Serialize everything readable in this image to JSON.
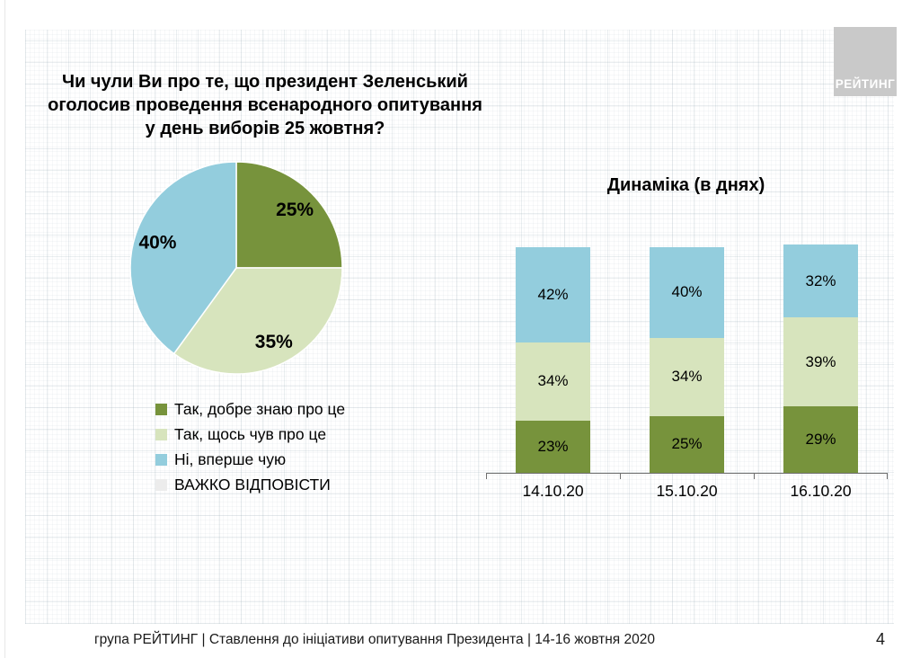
{
  "slide": {
    "page_number": "4",
    "footer": "група РЕЙТИНГ | Ставлення до ініціативи опитування Президента | 14-16 жовтня 2020",
    "logo_text": "РЕЙТИНГ",
    "logo_color": "#c9c9c9"
  },
  "colors": {
    "green": "#77933C",
    "light_green": "#D7E4BD",
    "blue": "#93CDDD",
    "gray": "#ECECEC",
    "axis": "#6e6e6e"
  },
  "chart_data": [
    {
      "type": "pie",
      "title": "Чи чули Ви про те, що президент Зеленський оголосив проведення  всенародного опитування у день виборів 25 жовтня?",
      "data_labels": "percent",
      "legend_position": "bottom-left",
      "slices": [
        {
          "label": "Так, добре знаю про це",
          "value": 25,
          "color": "#77933C"
        },
        {
          "label": "Так, щось чув про це",
          "value": 35,
          "color": "#D7E4BD"
        },
        {
          "label": "Ні, вперше чую",
          "value": 40,
          "color": "#93CDDD"
        },
        {
          "label": "ВАЖКО ВІДПОВІСТИ",
          "value": 0,
          "color": "#ECECEC"
        }
      ]
    },
    {
      "type": "bar",
      "variant": "stacked-column",
      "title": "Динаміка (в днях)",
      "unit": "%",
      "ylim": [
        0,
        100
      ],
      "grid": false,
      "categories": [
        "14.10.20",
        "15.10.20",
        "16.10.20"
      ],
      "series": [
        {
          "name": "Так, добре знаю про це",
          "color": "#77933C",
          "values": [
            23,
            25,
            29
          ]
        },
        {
          "name": "Так, щось чув про це",
          "color": "#D7E4BD",
          "values": [
            34,
            34,
            39
          ]
        },
        {
          "name": "Ні, вперше чую",
          "color": "#93CDDD",
          "values": [
            42,
            40,
            32
          ]
        }
      ]
    }
  ]
}
